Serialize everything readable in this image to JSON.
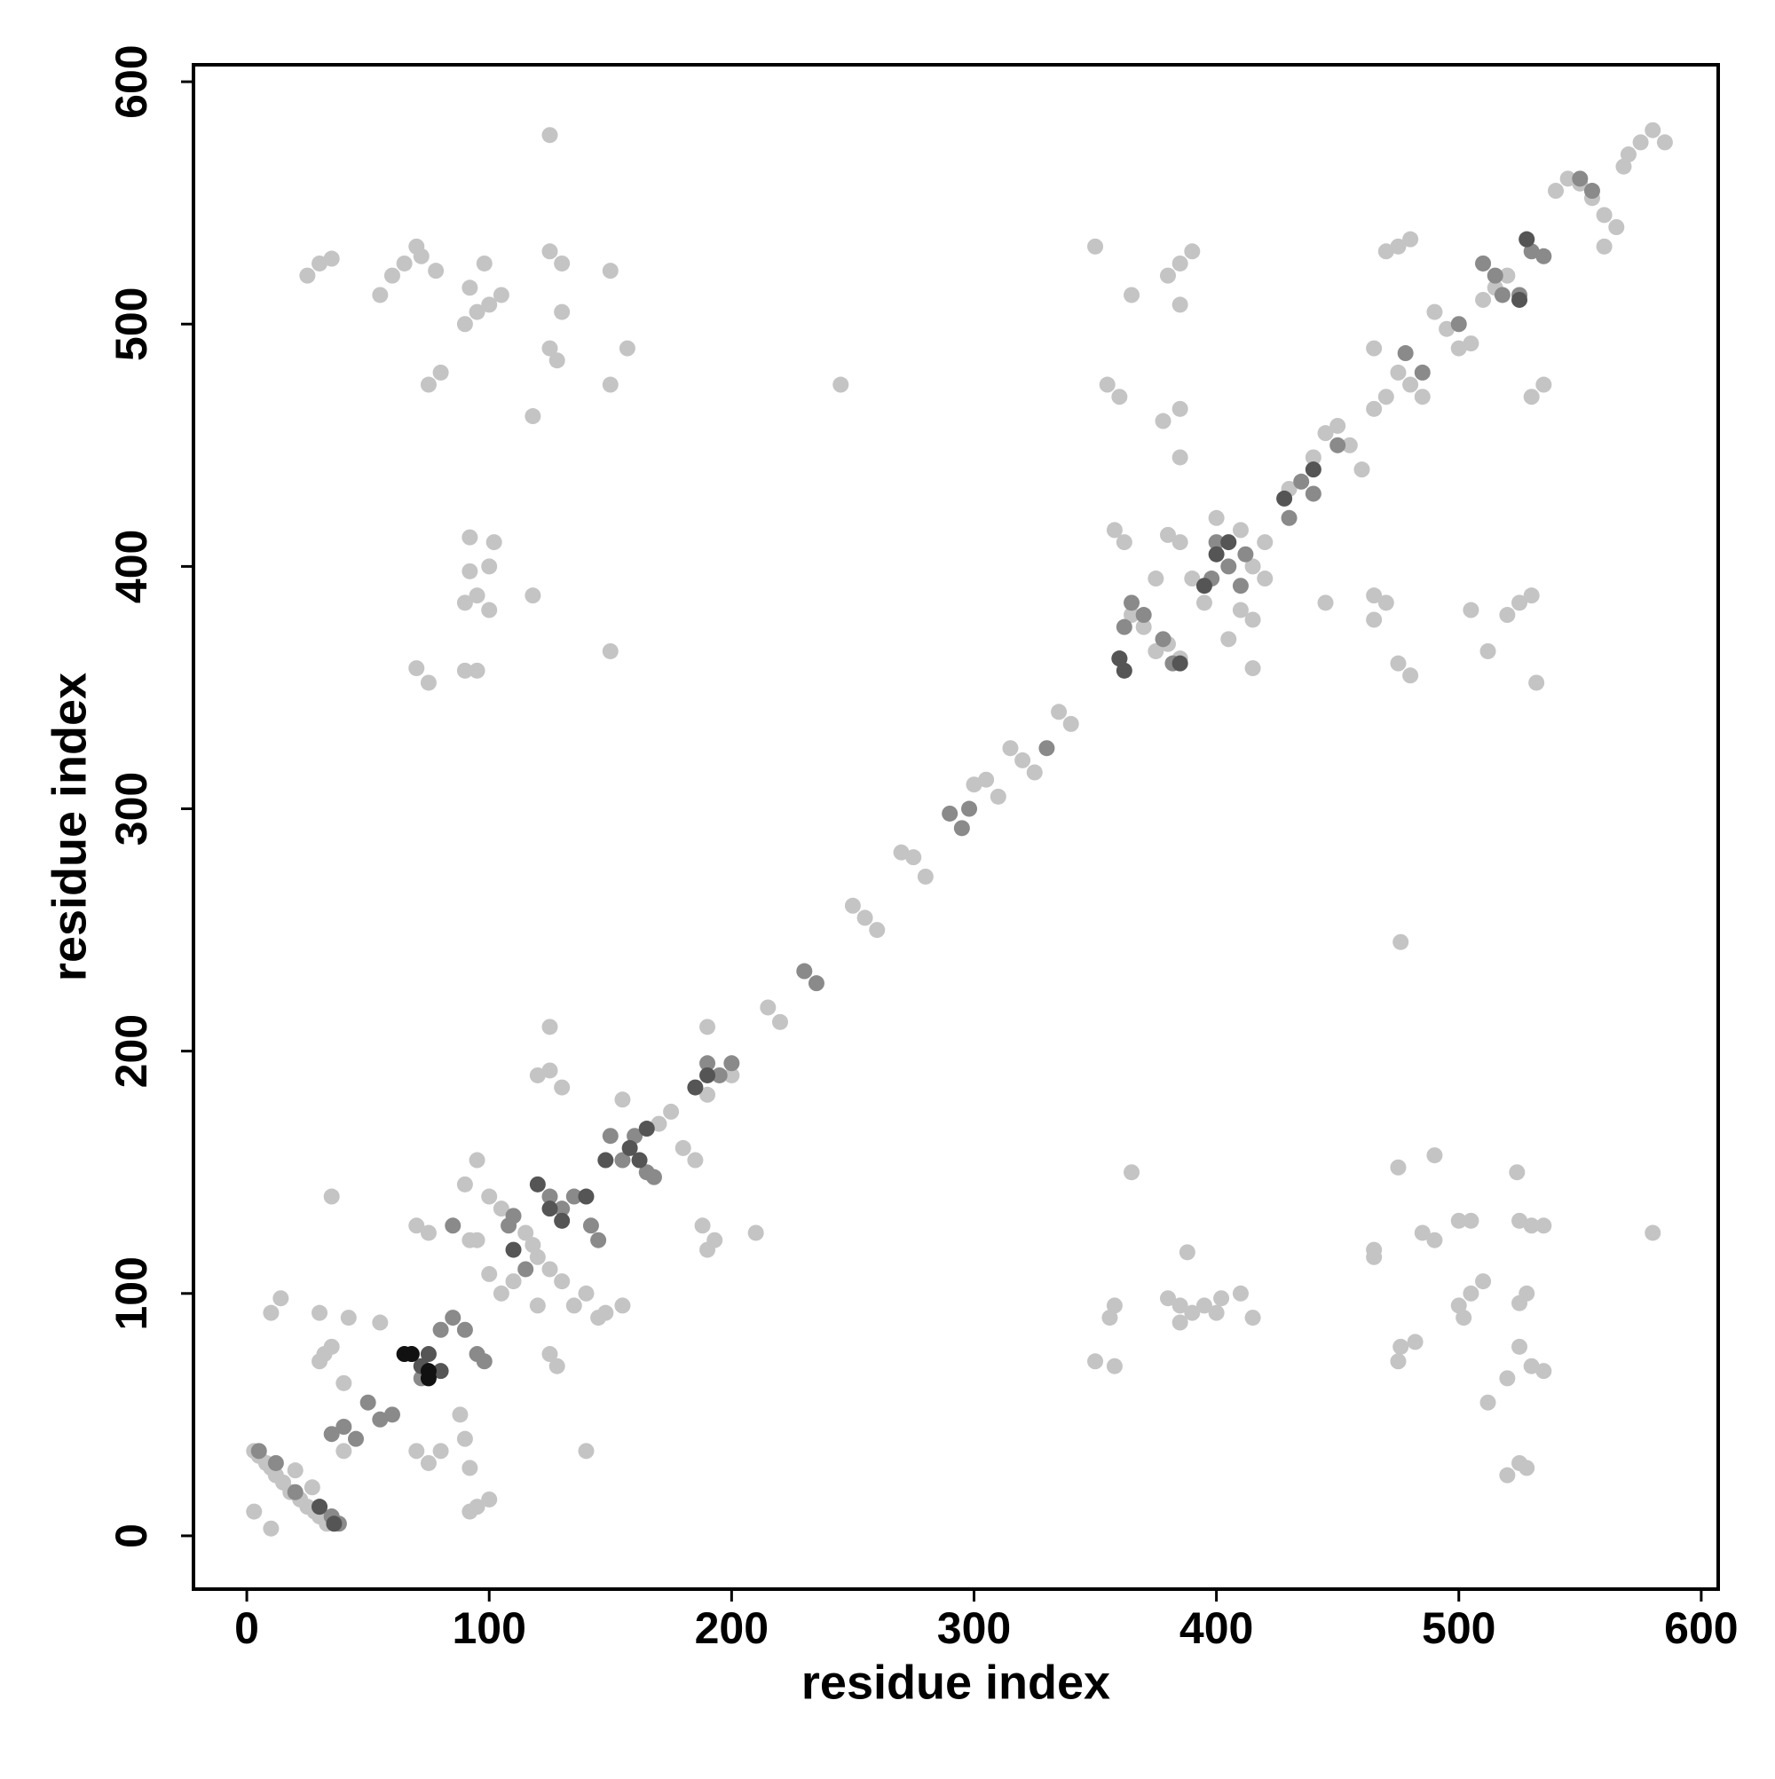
{
  "chart_data": {
    "type": "scatter",
    "x_label": "residue index",
    "y_label": "residue index",
    "xlim": [
      -22,
      607
    ],
    "ylim": [
      -22,
      607
    ],
    "xticks": [
      0,
      100,
      200,
      300,
      400,
      500,
      600
    ],
    "yticks": [
      0,
      100,
      200,
      300,
      400,
      500,
      600
    ],
    "series": [
      {
        "color": "#c4c4c4",
        "x": [
          3,
          5,
          8,
          10,
          12,
          15,
          18,
          22,
          25,
          28,
          30,
          33,
          3,
          10,
          27,
          20,
          10,
          14,
          30,
          32,
          35,
          42,
          30,
          40,
          40,
          55,
          35,
          70,
          75,
          70,
          75,
          80,
          88,
          90,
          92,
          95,
          100,
          92,
          92,
          95,
          90,
          95,
          100,
          105,
          100,
          105,
          110,
          115,
          118,
          120,
          125,
          130,
          135,
          140,
          145,
          148,
          120,
          125,
          130,
          125,
          120,
          125,
          128,
          140,
          155,
          155,
          170,
          175,
          180,
          185,
          188,
          190,
          193,
          200,
          210,
          215,
          220,
          190,
          190,
          250,
          255,
          260,
          270,
          275,
          280,
          300,
          305,
          310,
          315,
          320,
          325,
          335,
          340,
          245,
          25,
          30,
          35,
          55,
          60,
          65,
          70,
          72,
          78,
          75,
          80,
          90,
          95,
          100,
          105,
          98,
          92,
          125,
          125,
          130,
          130,
          125,
          128,
          118,
          150,
          157,
          150,
          90,
          95,
          100,
          92,
          100,
          92,
          102,
          118,
          150,
          70,
          75,
          90,
          95,
          350,
          385,
          390,
          380,
          385,
          365,
          355,
          360,
          385,
          378,
          385,
          358,
          362,
          380,
          385,
          375,
          390,
          365,
          370,
          375,
          385,
          380,
          395,
          400,
          410,
          415,
          420,
          420,
          410,
          415,
          405,
          415,
          430,
          440,
          445,
          450,
          455,
          460,
          465,
          470,
          465,
          475,
          480,
          485,
          490,
          495,
          500,
          505,
          510,
          515,
          470,
          475,
          480,
          510,
          520,
          528,
          535,
          530,
          540,
          545,
          550,
          555,
          560,
          565,
          560,
          570,
          575,
          580,
          585,
          568,
          445,
          465,
          470,
          465,
          475,
          480,
          505,
          512,
          520,
          525,
          530,
          532,
          476,
          350,
          358,
          356,
          358,
          365,
          380,
          385,
          390,
          385,
          395,
          388,
          400,
          402,
          410,
          415,
          465,
          465,
          475,
          475,
          476,
          482,
          485,
          490,
          490,
          500,
          505,
          500,
          505,
          510,
          502,
          525,
          530,
          535,
          520,
          525,
          528,
          525,
          530,
          535,
          520,
          512,
          525,
          528,
          524,
          580
        ],
        "y": [
          35,
          33,
          30,
          28,
          25,
          22,
          18,
          15,
          12,
          10,
          8,
          5,
          10,
          3,
          20,
          27,
          92,
          98,
          92,
          75,
          78,
          90,
          72,
          35,
          63,
          88,
          140,
          128,
          125,
          35,
          30,
          35,
          50,
          40,
          10,
          12,
          15,
          28,
          122,
          122,
          145,
          155,
          140,
          135,
          108,
          100,
          105,
          125,
          120,
          115,
          110,
          105,
          95,
          100,
          90,
          92,
          190,
          192,
          185,
          210,
          95,
          75,
          70,
          35,
          95,
          180,
          170,
          175,
          160,
          155,
          128,
          118,
          122,
          190,
          125,
          218,
          212,
          210,
          182,
          260,
          255,
          250,
          282,
          280,
          272,
          310,
          312,
          305,
          325,
          320,
          315,
          340,
          335,
          475,
          520,
          525,
          527,
          512,
          520,
          525,
          532,
          528,
          522,
          475,
          480,
          500,
          505,
          508,
          512,
          525,
          515,
          578,
          530,
          525,
          505,
          490,
          485,
          462,
          522,
          490,
          475,
          385,
          388,
          382,
          398,
          400,
          412,
          410,
          388,
          365,
          358,
          352,
          357,
          357,
          532,
          525,
          530,
          520,
          508,
          512,
          475,
          470,
          465,
          460,
          445,
          415,
          410,
          413,
          410,
          395,
          395,
          380,
          375,
          365,
          362,
          368,
          385,
          420,
          415,
          400,
          410,
          395,
          382,
          378,
          370,
          358,
          432,
          445,
          455,
          458,
          450,
          440,
          465,
          470,
          490,
          480,
          475,
          470,
          505,
          498,
          490,
          492,
          510,
          515,
          530,
          532,
          535,
          525,
          520,
          535,
          475,
          470,
          555,
          560,
          558,
          552,
          545,
          540,
          532,
          570,
          575,
          580,
          575,
          565,
          385,
          378,
          385,
          388,
          360,
          355,
          382,
          365,
          380,
          385,
          388,
          352,
          245,
          72,
          70,
          90,
          95,
          150,
          98,
          95,
          92,
          88,
          95,
          117,
          92,
          98,
          100,
          90,
          118,
          115,
          152,
          72,
          78,
          80,
          125,
          122,
          157,
          130,
          130,
          95,
          100,
          105,
          90,
          130,
          128,
          128,
          25,
          30,
          28,
          78,
          70,
          68,
          65,
          55,
          96,
          100,
          150,
          125
        ]
      },
      {
        "color": "#8a8a8a",
        "x": [
          5,
          12,
          20,
          30,
          35,
          38,
          35,
          40,
          45,
          50,
          55,
          60,
          68,
          72,
          80,
          85,
          90,
          95,
          98,
          108,
          110,
          115,
          125,
          130,
          135,
          142,
          145,
          150,
          155,
          160,
          165,
          168,
          190,
          195,
          200,
          298,
          295,
          290,
          330,
          362,
          365,
          370,
          378,
          382,
          360,
          398,
          405,
          410,
          412,
          400,
          430,
          435,
          440,
          450,
          478,
          485,
          510,
          515,
          518,
          525,
          530,
          535,
          550,
          555,
          500,
          230,
          235,
          85
        ],
        "y": [
          35,
          30,
          18,
          12,
          8,
          5,
          42,
          45,
          40,
          55,
          48,
          50,
          75,
          65,
          85,
          90,
          85,
          75,
          72,
          128,
          132,
          110,
          140,
          135,
          140,
          128,
          122,
          165,
          155,
          165,
          150,
          148,
          195,
          190,
          195,
          300,
          292,
          298,
          325,
          375,
          385,
          380,
          370,
          360,
          362,
          395,
          400,
          392,
          405,
          410,
          420,
          435,
          430,
          450,
          488,
          480,
          525,
          520,
          512,
          512,
          530,
          528,
          560,
          555,
          500,
          233,
          228,
          128
        ]
      },
      {
        "color": "#555555",
        "x": [
          30,
          36,
          72,
          75,
          80,
          110,
          120,
          125,
          130,
          140,
          148,
          158,
          162,
          165,
          185,
          190,
          395,
          400,
          405,
          428,
          440,
          525,
          528,
          360,
          362,
          385
        ],
        "y": [
          12,
          5,
          70,
          75,
          68,
          118,
          145,
          135,
          130,
          140,
          155,
          160,
          155,
          168,
          185,
          190,
          392,
          405,
          410,
          428,
          440,
          510,
          535,
          362,
          357,
          360
        ]
      },
      {
        "color": "#111111",
        "x": [
          65,
          68,
          75,
          75
        ],
        "y": [
          75,
          75,
          65,
          68
        ]
      }
    ]
  }
}
